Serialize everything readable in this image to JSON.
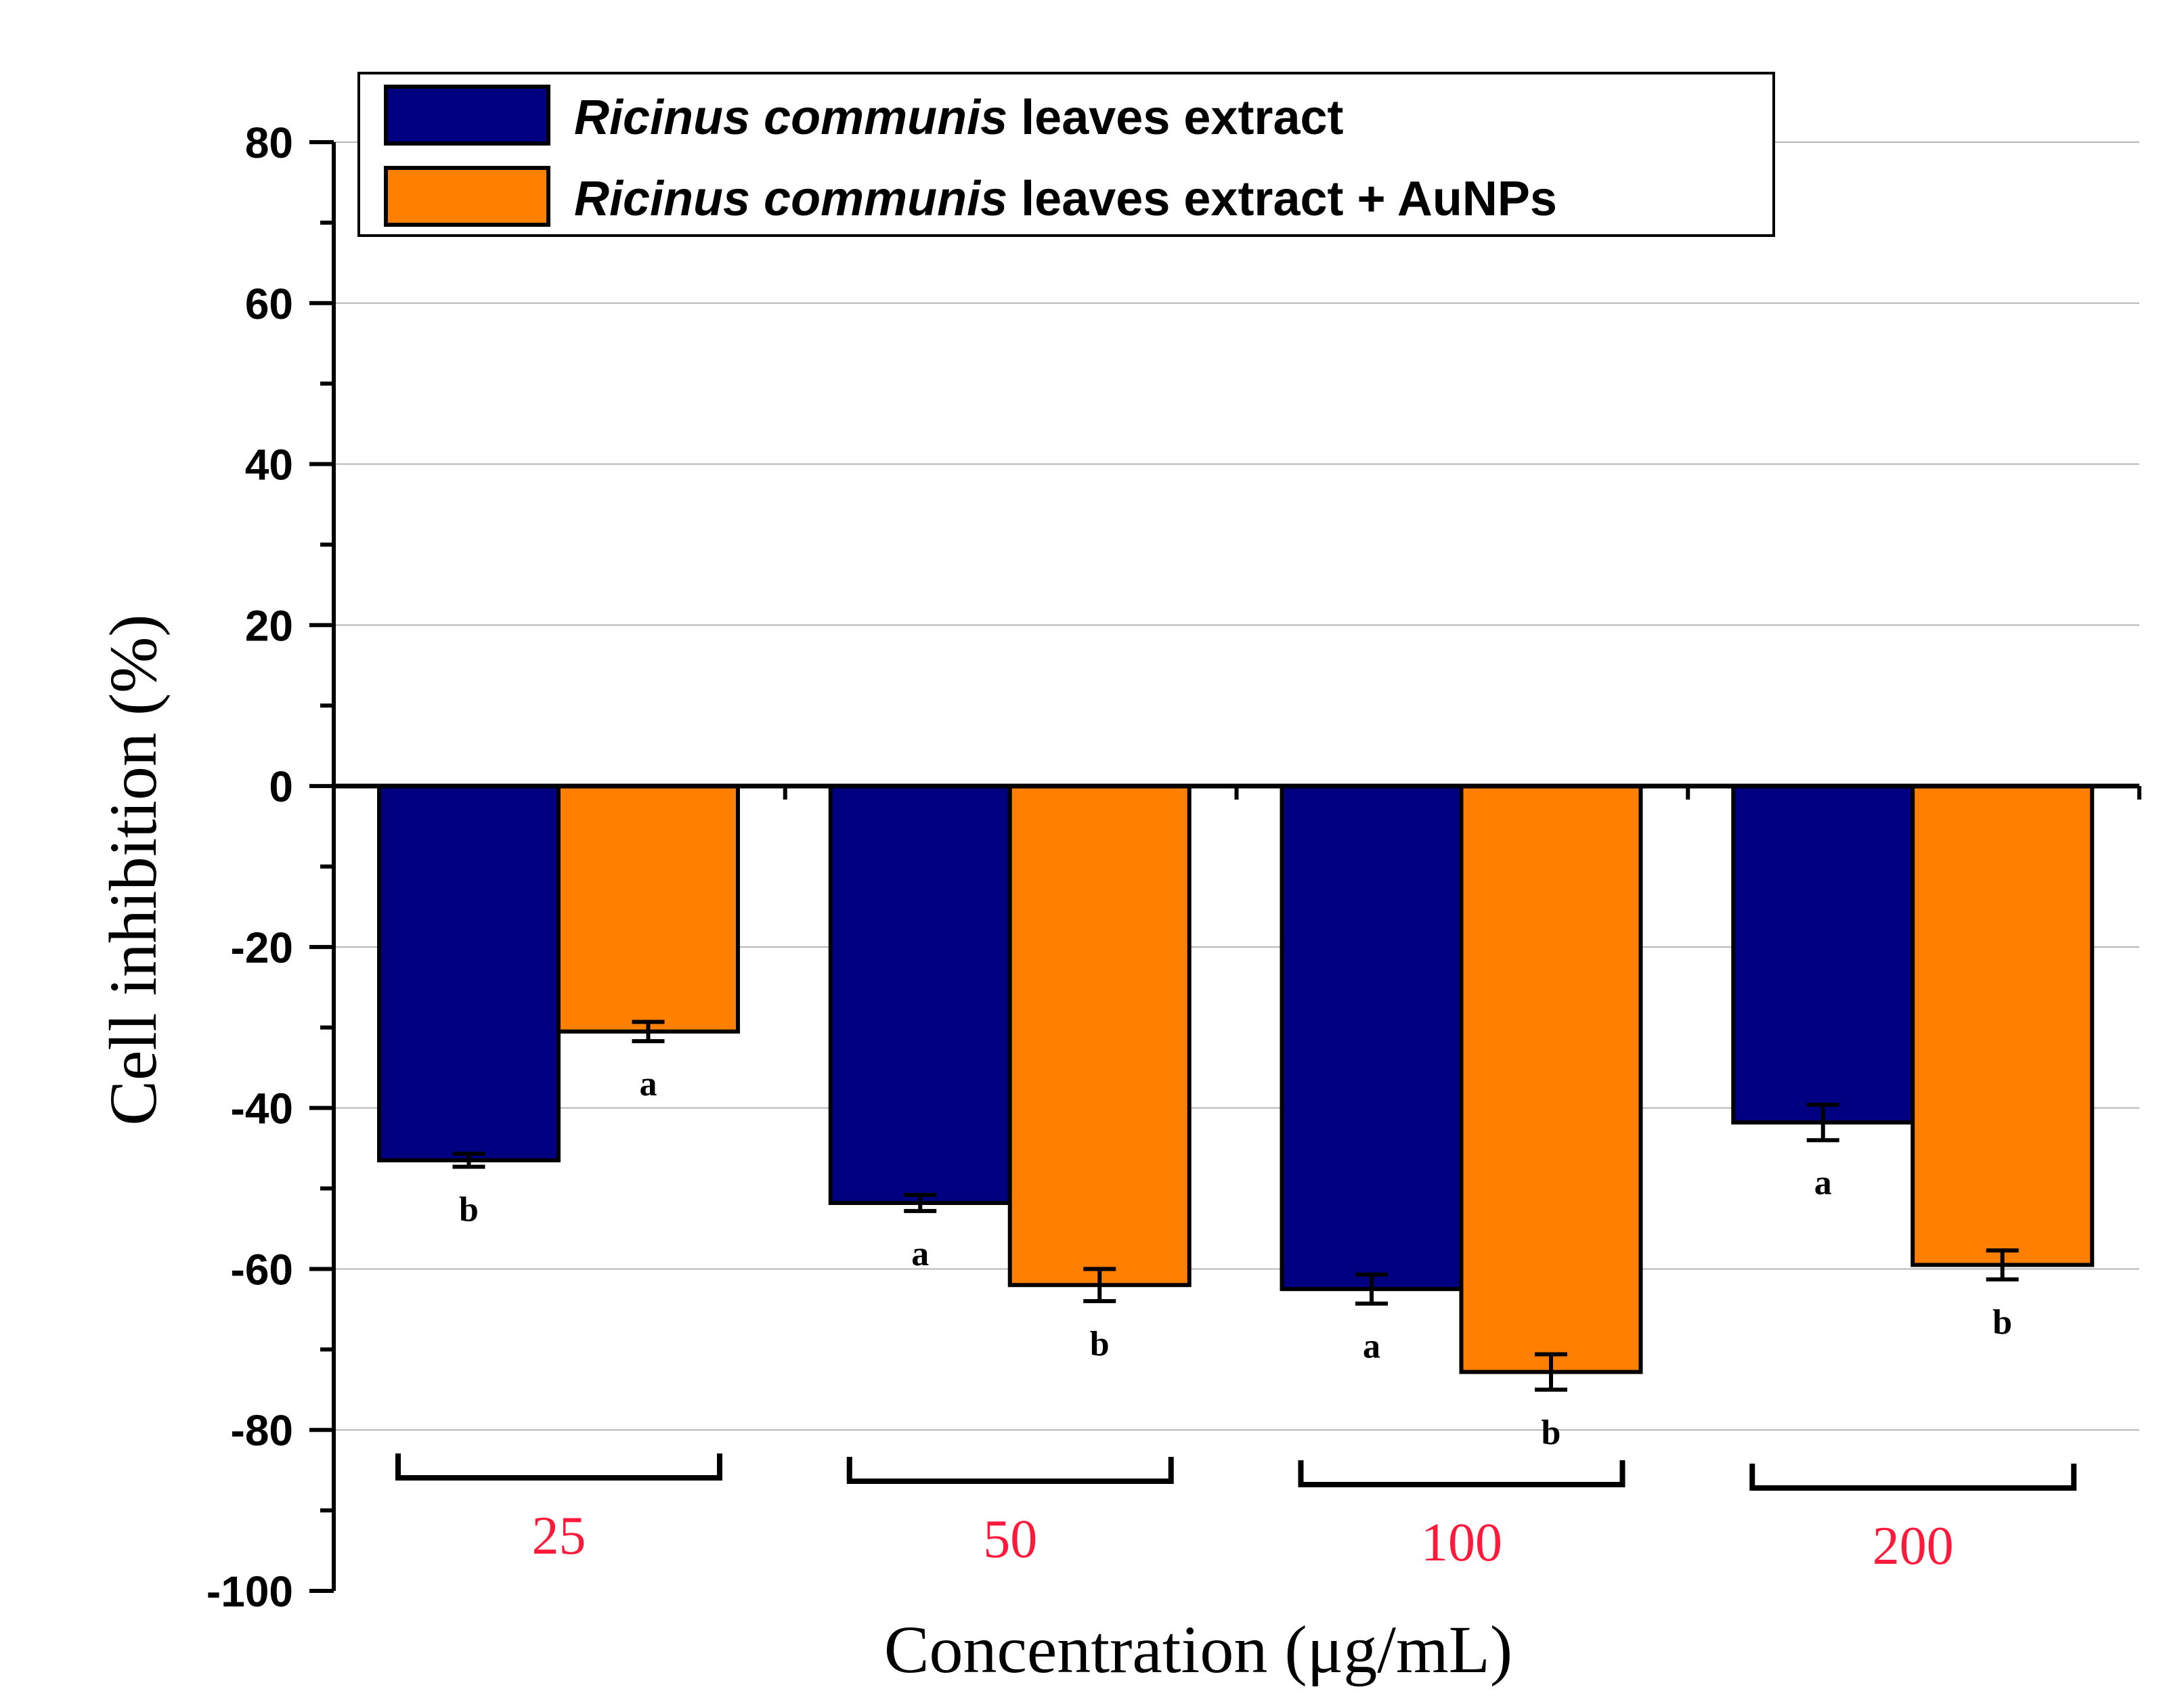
{
  "chart_data": {
    "type": "bar",
    "title": "",
    "xlabel": "Concentration (μg/mL)",
    "ylabel": "Cell inhibition (%)",
    "ylim": [
      -100,
      80
    ],
    "yticks": [
      80,
      60,
      40,
      20,
      0,
      -20,
      -40,
      -60,
      -80,
      -100
    ],
    "grid": true,
    "legend_position": "top",
    "categories": [
      "25",
      "50",
      "100",
      "200"
    ],
    "category_label_color": "#ff1a3c",
    "series": [
      {
        "name": "Ricinus communis leaves extract",
        "name_italic": "Ricinus communis",
        "name_rest": "leaves extract",
        "color": "#000080",
        "values": [
          -46.5,
          -51.8,
          -62.5,
          -41.8
        ],
        "errors": [
          0.8,
          1.0,
          1.8,
          2.2
        ],
        "sig_labels": [
          "b",
          "a",
          "a",
          "a"
        ]
      },
      {
        "name": "Ricinus communis leaves extract + AuNPs",
        "name_italic": "Ricinus communis",
        "name_rest": "leaves extract + AuNPs",
        "color": "#ff8000",
        "values": [
          -30.5,
          -62.0,
          -72.8,
          -59.5
        ],
        "errors": [
          1.2,
          2.0,
          2.2,
          1.8
        ],
        "sig_labels": [
          "a",
          "b",
          "b",
          "b"
        ]
      }
    ]
  }
}
